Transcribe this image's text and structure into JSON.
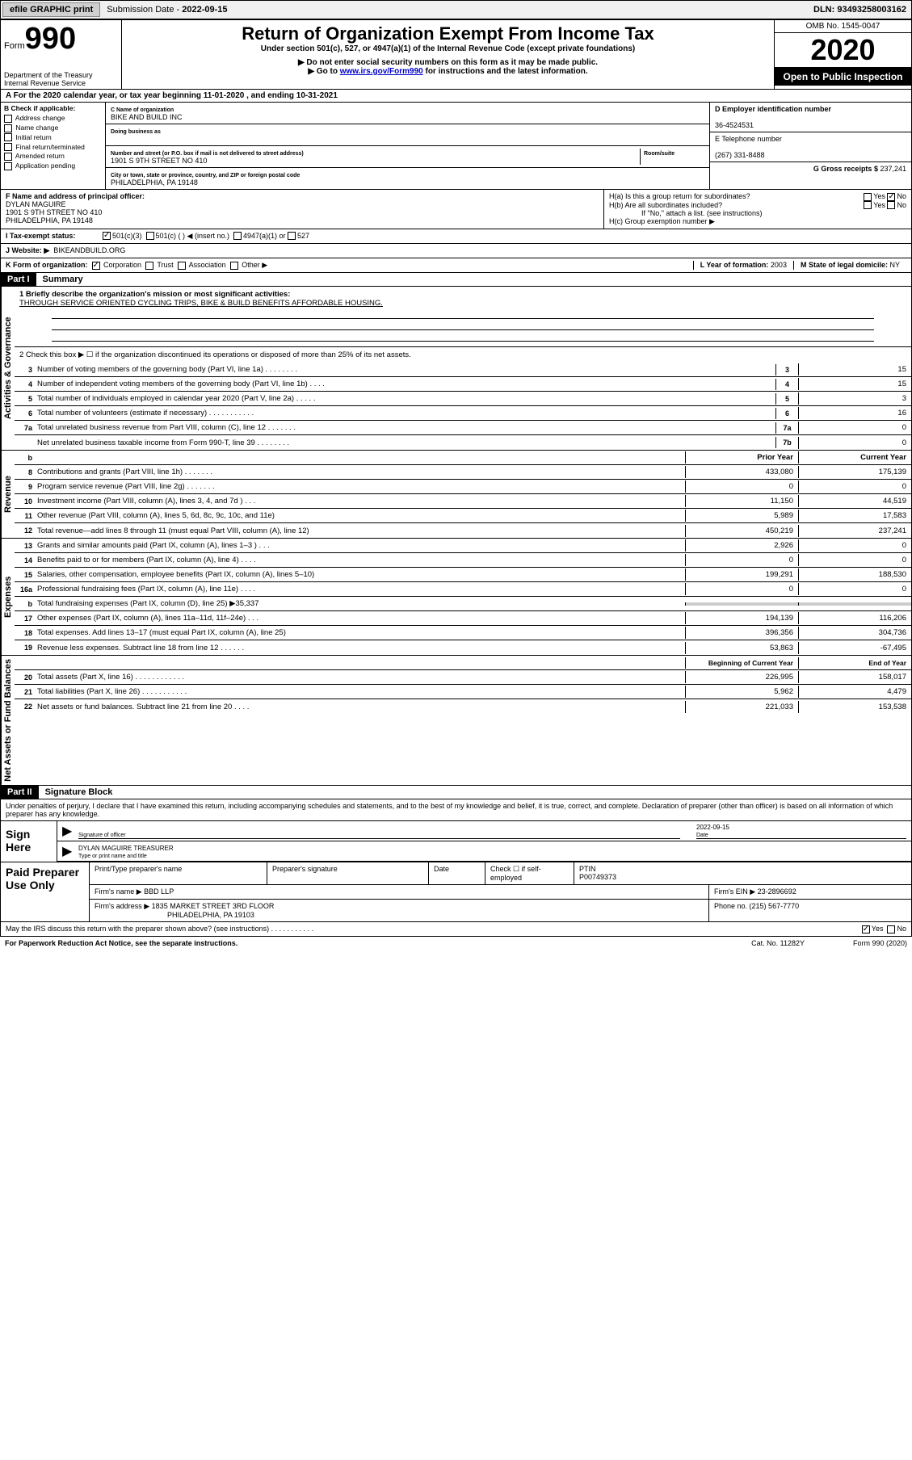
{
  "topbar": {
    "efile": "efile GRAPHIC print",
    "subdate_label": "Submission Date - ",
    "subdate": "2022-09-15",
    "dln_label": "DLN: ",
    "dln": "93493258003162"
  },
  "header": {
    "form_prefix": "Form",
    "form_number": "990",
    "dept": "Department of the Treasury\nInternal Revenue Service",
    "title": "Return of Organization Exempt From Income Tax",
    "sub1": "Under section 501(c), 527, or 4947(a)(1) of the Internal Revenue Code (except private foundations)",
    "sub2": "▶ Do not enter social security numbers on this form as it may be made public.",
    "sub3_pre": "▶ Go to ",
    "sub3_link": "www.irs.gov/Form990",
    "sub3_post": " for instructions and the latest information.",
    "omb": "OMB No. 1545-0047",
    "year": "2020",
    "inspect": "Open to Public Inspection"
  },
  "rowA": "A For the 2020 calendar year, or tax year beginning 11-01-2020    , and ending 10-31-2021",
  "colB": {
    "hdr": "B Check if applicable:",
    "items": [
      "Address change",
      "Name change",
      "Initial return",
      "Final return/terminated",
      "Amended return",
      "Application pending"
    ]
  },
  "colC": {
    "name_label": "C Name of organization",
    "name": "BIKE AND BUILD INC",
    "dba_label": "Doing business as",
    "dba": "",
    "addr_label": "Number and street (or P.O. box if mail is not delivered to street address)",
    "room_label": "Room/suite",
    "addr": "1901 S 9TH STREET NO 410",
    "city_label": "City or town, state or province, country, and ZIP or foreign postal code",
    "city": "PHILADELPHIA, PA  19148"
  },
  "colD": {
    "ein_label": "D Employer identification number",
    "ein": "36-4524531",
    "tel_label": "E Telephone number",
    "tel": "(267) 331-8488",
    "gross_label": "G Gross receipts $ ",
    "gross": "237,241"
  },
  "f": {
    "label": "F  Name and address of principal officer:",
    "name": "DYLAN MAGUIRE",
    "addr1": "1901 S 9TH STREET NO 410",
    "addr2": "PHILADELPHIA, PA  19148"
  },
  "h": {
    "ha": "H(a)  Is this a group return for subordinates?",
    "hb": "H(b)  Are all subordinates included?",
    "hb_note": "If \"No,\" attach a list. (see instructions)",
    "hc": "H(c)  Group exemption number ▶"
  },
  "tax": {
    "label": "I  Tax-exempt status:",
    "opt1": "501(c)(3)",
    "opt2": "501(c) (   ) ◀ (insert no.)",
    "opt3": "4947(a)(1) or",
    "opt4": "527"
  },
  "web": {
    "label": "J  Website: ▶",
    "val": "BIKEANDBUILD.ORG"
  },
  "k": {
    "label": "K Form of organization:",
    "corp": "Corporation",
    "trust": "Trust",
    "assoc": "Association",
    "other": "Other ▶",
    "l_label": "L Year of formation: ",
    "l_val": "2003",
    "m_label": "M State of legal domicile: ",
    "m_val": "NY"
  },
  "part1": {
    "hdr": "Part I",
    "title": "Summary",
    "q1": "1  Briefly describe the organization's mission or most significant activities:",
    "mission": "THROUGH SERVICE ORIENTED CYCLING TRIPS, BIKE & BUILD BENEFITS AFFORDABLE HOUSING.",
    "q2": "2   Check this box ▶ ☐  if the organization discontinued its operations or disposed of more than 25% of its net assets."
  },
  "gov_lines": [
    {
      "n": "3",
      "t": "Number of voting members of the governing body (Part VI, line 1a)   .    .    .    .    .    .    .    .",
      "b": "3",
      "v": "15"
    },
    {
      "n": "4",
      "t": "Number of independent voting members of the governing body (Part VI, line 1b)   .    .    .    .",
      "b": "4",
      "v": "15"
    },
    {
      "n": "5",
      "t": "Total number of individuals employed in calendar year 2020 (Part V, line 2a)   .    .    .    .    .",
      "b": "5",
      "v": "3"
    },
    {
      "n": "6",
      "t": "Total number of volunteers (estimate if necessary)   .    .    .    .    .    .    .    .    .    .    .",
      "b": "6",
      "v": "16"
    },
    {
      "n": "7a",
      "t": "Total unrelated business revenue from Part VIII, column (C), line 12   .    .    .    .    .    .    .",
      "b": "7a",
      "v": "0"
    },
    {
      "n": "",
      "t": "Net unrelated business taxable income from Form 990-T, line 39   .    .    .    .    .    .    .    .",
      "b": "7b",
      "v": "0"
    }
  ],
  "rev_hdr": {
    "b": "b",
    "py": "Prior Year",
    "cy": "Current Year"
  },
  "rev_lines": [
    {
      "n": "8",
      "t": "Contributions and grants (Part VIII, line 1h)   .    .    .    .    .    .    .",
      "py": "433,080",
      "cy": "175,139"
    },
    {
      "n": "9",
      "t": "Program service revenue (Part VIII, line 2g)   .    .    .    .    .    .    .",
      "py": "0",
      "cy": "0"
    },
    {
      "n": "10",
      "t": "Investment income (Part VIII, column (A), lines 3, 4, and 7d )   .    .    .",
      "py": "11,150",
      "cy": "44,519"
    },
    {
      "n": "11",
      "t": "Other revenue (Part VIII, column (A), lines 5, 6d, 8c, 9c, 10c, and 11e)",
      "py": "5,989",
      "cy": "17,583"
    },
    {
      "n": "12",
      "t": "Total revenue—add lines 8 through 11 (must equal Part VIII, column (A), line 12)",
      "py": "450,219",
      "cy": "237,241"
    }
  ],
  "exp_lines": [
    {
      "n": "13",
      "t": "Grants and similar amounts paid (Part IX, column (A), lines 1–3 )   .    .    .",
      "py": "2,926",
      "cy": "0"
    },
    {
      "n": "14",
      "t": "Benefits paid to or for members (Part IX, column (A), line 4)   .    .    .    .",
      "py": "0",
      "cy": "0"
    },
    {
      "n": "15",
      "t": "Salaries, other compensation, employee benefits (Part IX, column (A), lines 5–10)",
      "py": "199,291",
      "cy": "188,530"
    },
    {
      "n": "16a",
      "t": "Professional fundraising fees (Part IX, column (A), line 11e)   .    .    .    .",
      "py": "0",
      "cy": "0"
    },
    {
      "n": "b",
      "t": "Total fundraising expenses (Part IX, column (D), line 25) ▶35,337",
      "py": "",
      "cy": "",
      "shaded": true
    },
    {
      "n": "17",
      "t": "Other expenses (Part IX, column (A), lines 11a–11d, 11f–24e)   .    .    .",
      "py": "194,139",
      "cy": "116,206"
    },
    {
      "n": "18",
      "t": "Total expenses. Add lines 13–17 (must equal Part IX, column (A), line 25)",
      "py": "396,356",
      "cy": "304,736"
    },
    {
      "n": "19",
      "t": "Revenue less expenses. Subtract line 18 from line 12  .    .    .    .    .    .",
      "py": "53,863",
      "cy": "-67,495"
    }
  ],
  "na_hdr": {
    "py": "Beginning of Current Year",
    "cy": "End of Year"
  },
  "na_lines": [
    {
      "n": "20",
      "t": "Total assets (Part X, line 16)   .    .    .    .    .    .    .    .    .    .    .    .",
      "py": "226,995",
      "cy": "158,017"
    },
    {
      "n": "21",
      "t": "Total liabilities (Part X, line 26)   .    .    .    .    .    .    .    .    .    .    .",
      "py": "5,962",
      "cy": "4,479"
    },
    {
      "n": "22",
      "t": "Net assets or fund balances. Subtract line 21 from line 20  .    .    .    .",
      "py": "221,033",
      "cy": "153,538"
    }
  ],
  "part2": {
    "hdr": "Part II",
    "title": "Signature Block",
    "decl": "Under penalties of perjury, I declare that I have examined this return, including accompanying schedules and statements, and to the best of my knowledge and belief, it is true, correct, and complete. Declaration of preparer (other than officer) is based on all information of which preparer has any knowledge."
  },
  "sign": {
    "left": "Sign Here",
    "sig_label": "Signature of officer",
    "date_label": "Date",
    "date": "2022-09-15",
    "name": "DYLAN MAGUIRE  TREASURER",
    "name_label": "Type or print name and title"
  },
  "prep": {
    "left": "Paid Preparer Use Only",
    "h1": "Print/Type preparer's name",
    "h2": "Preparer's signature",
    "h3": "Date",
    "h4": "Check ☐ if self-employed",
    "h5": "PTIN",
    "ptin": "P00749373",
    "firm_label": "Firm's name   ▶",
    "firm": "BBD LLP",
    "ein_label": "Firm's EIN ▶",
    "ein": "23-2896692",
    "addr_label": "Firm's address ▶",
    "addr1": "1835 MARKET STREET 3RD FLOOR",
    "addr2": "PHILADELPHIA, PA  19103",
    "phone_label": "Phone no. ",
    "phone": "(215) 567-7770"
  },
  "footer": {
    "irs": "May the IRS discuss this return with the preparer shown above? (see instructions)   .    .    .    .    .    .    .    .    .    .    .",
    "paperwork": "For Paperwork Reduction Act Notice, see the separate instructions.",
    "cat": "Cat. No. 11282Y",
    "form": "Form 990 (2020)"
  },
  "vlabels": {
    "gov": "Activities & Governance",
    "rev": "Revenue",
    "exp": "Expenses",
    "na": "Net Assets or Fund Balances"
  }
}
